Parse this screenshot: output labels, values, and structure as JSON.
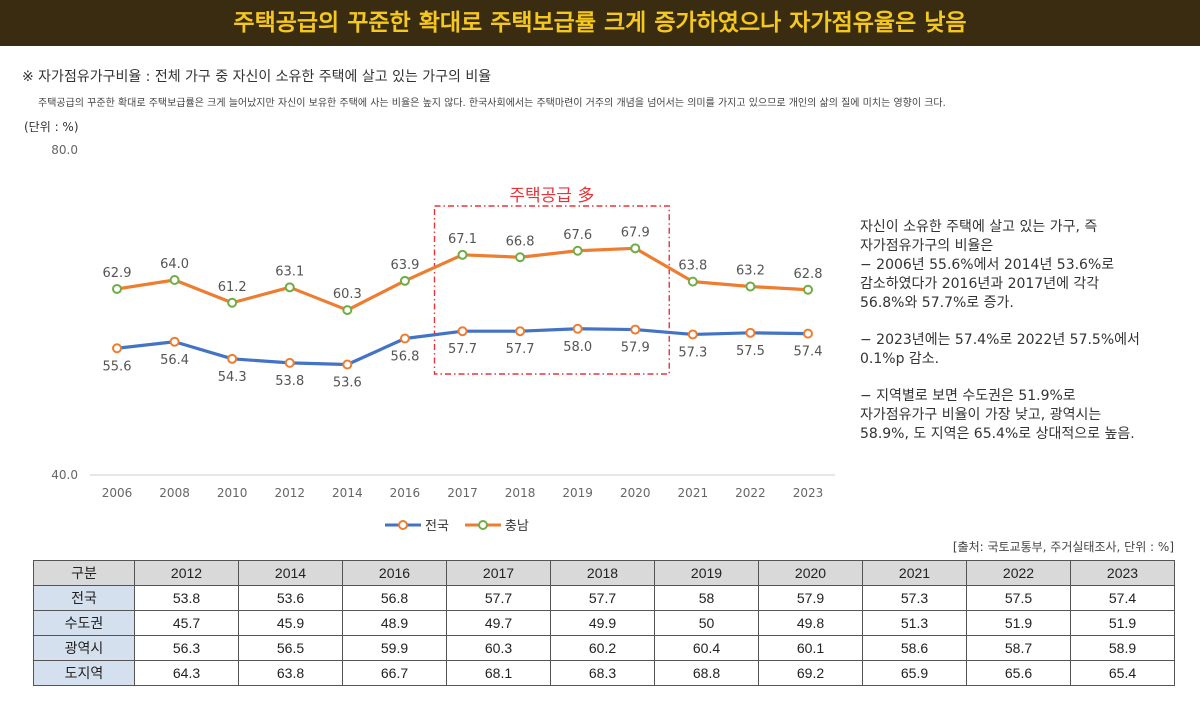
{
  "header": {
    "title": "주택공급의 꾸준한 확대로 주택보급률 크게 증가하였으나 자가점유율은 낮음"
  },
  "definition": "※ 자가점유가구비율 : 전체 가구 중 자신이 소유한 주택에 살고 있는 가구의 비율",
  "description": "주택공급의 꾸준한 확대로 주택보급률은 크게 늘어났지만 자신이 보유한 주택에 사는 비율은 높지 않다. 한국사회에서는 주택마련이 거주의 개념을 넘어서는 의미를 가지고 있으므로 개인의 삶의 질에 미치는 영향이 크다.",
  "unit_label": "(단위 : %)",
  "chart_data": {
    "type": "line",
    "x": [
      "2006",
      "2008",
      "2010",
      "2012",
      "2014",
      "2016",
      "2017",
      "2018",
      "2019",
      "2020",
      "2021",
      "2022",
      "2023"
    ],
    "ylim": [
      40.0,
      80.0
    ],
    "ytick_labels": [
      "80.0",
      "40.0"
    ],
    "grid": false,
    "series": [
      {
        "name": "전국",
        "color": "#4472c4",
        "values": [
          55.6,
          56.4,
          54.3,
          53.8,
          53.6,
          56.8,
          57.7,
          57.7,
          58.0,
          57.9,
          57.3,
          57.5,
          57.4
        ],
        "labels": [
          "55.6",
          "56.4",
          "54.3",
          "53.8",
          "53.6",
          "56.8",
          "57.7",
          "57.7",
          "58.0",
          "57.9",
          "57.3",
          "57.5",
          "57.4"
        ]
      },
      {
        "name": "충남",
        "color": "#ed7d31",
        "values": [
          62.9,
          64.0,
          61.2,
          63.1,
          60.3,
          63.9,
          67.1,
          66.8,
          67.6,
          67.9,
          63.8,
          63.2,
          62.8
        ],
        "labels": [
          "62.9",
          "64.0",
          "61.2",
          "63.1",
          "60.3",
          "63.9",
          "67.1",
          "66.8",
          "67.6",
          "67.9",
          "63.8",
          "63.2",
          "62.8"
        ]
      }
    ],
    "highlight": {
      "label": "주택공급 多",
      "from": "2017",
      "to": "2020",
      "color": "#e8333a"
    }
  },
  "annotations": [
    "자신이 소유한 주택에 살고 있는 가구, 즉\n자가점유가구의 비율은\n− 2006년 55.6%에서 2014년 53.6%로\n감소하였다가 2016년과 2017년에 각각\n56.8%와 57.7%로 증가.",
    "− 2023년에는 57.4%로 2022년 57.5%에서\n0.1%p 감소.",
    "− 지역별로 보면 수도권은 51.9%로\n자가점유가구 비율이 가장 낮고, 광역시는\n58.9%, 도 지역은 65.4%로 상대적으로 높음."
  ],
  "source": "[출처: 국토교통부, 주거실태조사, 단위 : %]",
  "table": {
    "header_label": "구분",
    "years": [
      "2012",
      "2014",
      "2016",
      "2017",
      "2018",
      "2019",
      "2020",
      "2021",
      "2022",
      "2023"
    ],
    "rows": [
      {
        "label": "전국",
        "values": [
          "53.8",
          "53.6",
          "56.8",
          "57.7",
          "57.7",
          "58",
          "57.9",
          "57.3",
          "57.5",
          "57.4"
        ]
      },
      {
        "label": "수도권",
        "values": [
          "45.7",
          "45.9",
          "48.9",
          "49.7",
          "49.9",
          "50",
          "49.8",
          "51.3",
          "51.9",
          "51.9"
        ]
      },
      {
        "label": "광역시",
        "values": [
          "56.3",
          "56.5",
          "59.9",
          "60.3",
          "60.2",
          "60.4",
          "60.1",
          "58.6",
          "58.7",
          "58.9"
        ]
      },
      {
        "label": "도지역",
        "values": [
          "64.3",
          "63.8",
          "66.7",
          "68.1",
          "68.3",
          "68.8",
          "69.2",
          "65.9",
          "65.6",
          "65.4"
        ]
      }
    ]
  }
}
